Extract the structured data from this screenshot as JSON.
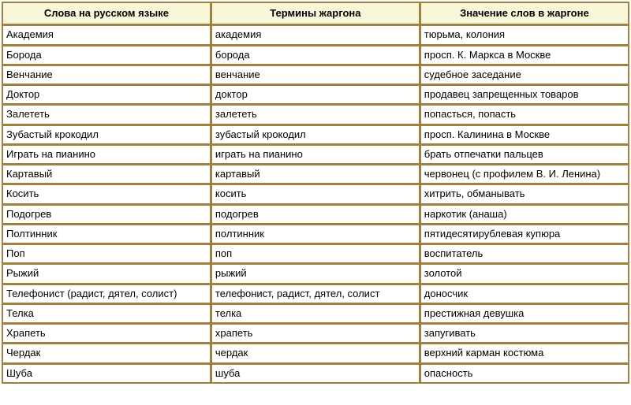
{
  "table": {
    "columns": [
      "Слова на русском языке",
      "Термины жаргона",
      "Значение слов в жаргоне"
    ],
    "rows": [
      [
        "Академия",
        "академия",
        "тюрьма, колония"
      ],
      [
        "Борода",
        "борода",
        "просп. К. Маркса в Москве"
      ],
      [
        "Венчание",
        "венчание",
        "судебное заседание"
      ],
      [
        "Доктор",
        "доктор",
        "продавец запрещенных товаров"
      ],
      [
        "Залететь",
        "залететь",
        "попасться, попасть"
      ],
      [
        "Зубастый крокодил",
        "зубастый крокодил",
        "просп. Калинина в Москве"
      ],
      [
        "Играть на пианино",
        "играть на пианино",
        "брать отпечатки пальцев"
      ],
      [
        "Картавый",
        "картавый",
        "червонец (с профилем В. И. Ленина)"
      ],
      [
        "Косить",
        "косить",
        "хитрить, обманывать"
      ],
      [
        "Подогрев",
        "подогрев",
        "наркотик (анаша)"
      ],
      [
        "Полтинник",
        "полтинник",
        "пятидесятирублевая купюра"
      ],
      [
        "Поп",
        "поп",
        "воспитатель"
      ],
      [
        "Рыжий",
        "рыжий",
        "золотой"
      ],
      [
        "Телефонист (радист, дятел, солист)",
        "телефонист, радист, дятел, солист",
        "доносчик"
      ],
      [
        "Телка",
        "телка",
        "престижная девушка"
      ],
      [
        "Храпеть",
        "храпеть",
        "запугивать"
      ],
      [
        "Чердак",
        "чердак",
        "верхний карман костюма"
      ],
      [
        "Шуба",
        "шуба",
        "опасность"
      ]
    ],
    "header_bg": "#f8f8d8",
    "cell_bg": "#ffffff",
    "border_color": "#a08040",
    "font_size": 13
  }
}
